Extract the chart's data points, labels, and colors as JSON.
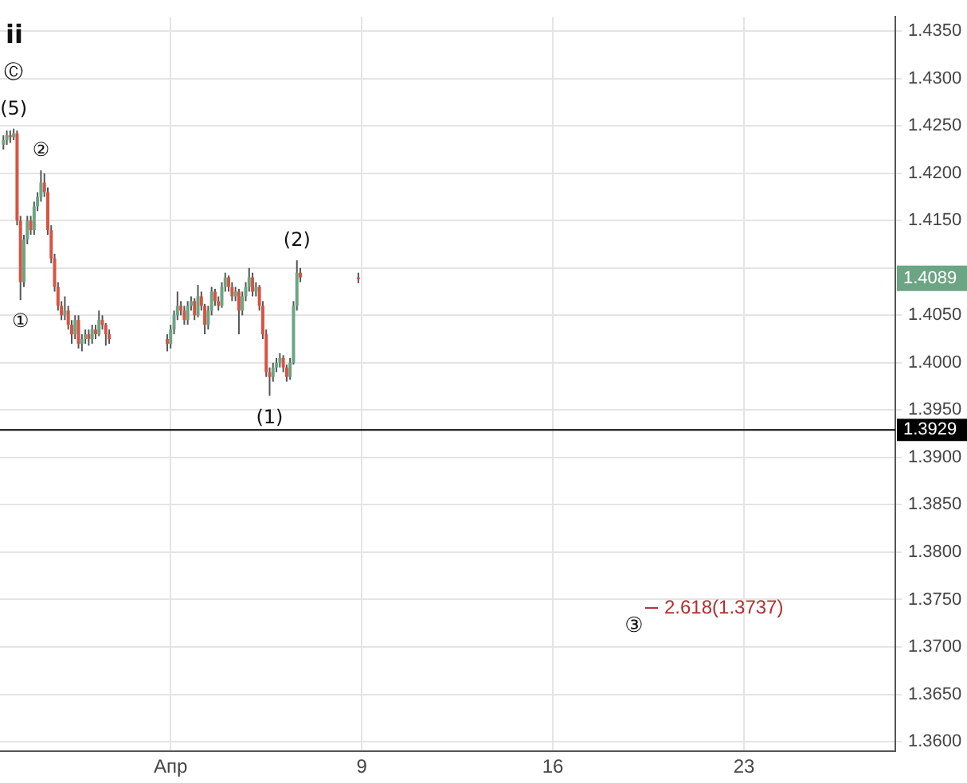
{
  "chart_data": {
    "type": "candlestick",
    "x": [
      "--03-26T21:00",
      "--03-27T00:00",
      "--03-27T03:00",
      "--03-27T06:00",
      "--03-27T09:00",
      "--03-27T12:00",
      "--03-27T15:00",
      "--03-27T18:00",
      "--03-27T21:00",
      "--03-28T00:00",
      "--03-28T03:00",
      "--03-28T06:00",
      "--03-28T09:00",
      "--03-28T12:00",
      "--03-28T15:00",
      "--03-28T18:00",
      "--03-28T21:00",
      "--03-29T00:00",
      "--03-29T03:00",
      "--03-29T06:00",
      "--03-29T09:00",
      "--03-29T12:00",
      "--03-29T15:00",
      "--03-29T18:00",
      "--03-29T21:00",
      "--03-30T00:00",
      "--03-30T03:00",
      "--03-30T06:00",
      "--03-30T09:00",
      "--03-30T12:00",
      "--03-30T15:00",
      "--03-30T18:00",
      "--04-01T21:00",
      "--04-02T00:00",
      "--04-02T03:00",
      "--04-02T06:00",
      "--04-02T09:00",
      "--04-02T12:00",
      "--04-02T15:00",
      "--04-02T18:00",
      "--04-02T21:00",
      "--04-03T00:00",
      "--04-03T03:00",
      "--04-03T06:00",
      "--04-03T09:00",
      "--04-03T12:00",
      "--04-03T15:00",
      "--04-03T18:00",
      "--04-03T21:00",
      "--04-04T00:00",
      "--04-04T03:00",
      "--04-04T06:00",
      "--04-04T09:00",
      "--04-04T12:00",
      "--04-04T15:00",
      "--04-04T18:00",
      "--04-04T21:00",
      "--04-05T00:00",
      "--04-05T03:00",
      "--04-05T06:00",
      "--04-05T09:00",
      "--04-05T12:00",
      "--04-05T15:00",
      "--04-05T18:00",
      "--04-05T21:00",
      "--04-06T00:00",
      "--04-06T03:00",
      "--04-06T06:00",
      "--04-06T09:00",
      "--04-06T12:00",
      "--04-06T15:00",
      "--04-06T18:00",
      "--04-08T21:00"
    ],
    "ohlc": [
      [
        1.423,
        1.424,
        1.4225,
        1.4235
      ],
      [
        1.4235,
        1.4245,
        1.423,
        1.424
      ],
      [
        1.424,
        1.4245,
        1.4232,
        1.4238
      ],
      [
        1.4238,
        1.4247,
        1.4235,
        1.4242
      ],
      [
        1.4242,
        1.4245,
        1.4145,
        1.415
      ],
      [
        1.415,
        1.4155,
        1.4066,
        1.4085
      ],
      [
        1.4085,
        1.4135,
        1.408,
        1.413
      ],
      [
        1.413,
        1.4155,
        1.4125,
        1.415
      ],
      [
        1.415,
        1.4155,
        1.4135,
        1.414
      ],
      [
        1.414,
        1.417,
        1.4135,
        1.4165
      ],
      [
        1.4165,
        1.418,
        1.416,
        1.4175
      ],
      [
        1.4175,
        1.4203,
        1.417,
        1.419
      ],
      [
        1.419,
        1.42,
        1.4175,
        1.418
      ],
      [
        1.418,
        1.4185,
        1.4135,
        1.414
      ],
      [
        1.414,
        1.4145,
        1.4105,
        1.411
      ],
      [
        1.411,
        1.4115,
        1.4075,
        1.408
      ],
      [
        1.408,
        1.4085,
        1.4055,
        1.406
      ],
      [
        1.406,
        1.4065,
        1.4045,
        1.405
      ],
      [
        1.405,
        1.407,
        1.4045,
        1.4055
      ],
      [
        1.4055,
        1.406,
        1.4035,
        1.404
      ],
      [
        1.404,
        1.4045,
        1.402,
        1.403
      ],
      [
        1.403,
        1.405,
        1.4025,
        1.4045
      ],
      [
        1.4045,
        1.405,
        1.4015,
        1.402
      ],
      [
        1.402,
        1.403,
        1.4012,
        1.4025
      ],
      [
        1.4025,
        1.4035,
        1.402,
        1.403
      ],
      [
        1.403,
        1.4035,
        1.4018,
        1.4025
      ],
      [
        1.4025,
        1.404,
        1.402,
        1.4035
      ],
      [
        1.4035,
        1.404,
        1.4025,
        1.403
      ],
      [
        1.403,
        1.4055,
        1.4028,
        1.4045
      ],
      [
        1.4045,
        1.405,
        1.4035,
        1.404
      ],
      [
        1.404,
        1.4042,
        1.4018,
        1.403
      ],
      [
        1.403,
        1.4035,
        1.402,
        1.4025
      ],
      [
        1.4025,
        1.403,
        1.4012,
        1.402
      ],
      [
        1.402,
        1.404,
        1.4015,
        1.4035
      ],
      [
        1.4035,
        1.4055,
        1.403,
        1.405
      ],
      [
        1.405,
        1.4075,
        1.4045,
        1.406
      ],
      [
        1.406,
        1.4065,
        1.405,
        1.4055
      ],
      [
        1.4055,
        1.406,
        1.404,
        1.4045
      ],
      [
        1.4045,
        1.4065,
        1.404,
        1.406
      ],
      [
        1.406,
        1.407,
        1.4055,
        1.4065
      ],
      [
        1.4065,
        1.4068,
        1.4045,
        1.405
      ],
      [
        1.405,
        1.4082,
        1.4048,
        1.407
      ],
      [
        1.407,
        1.4075,
        1.4055,
        1.406
      ],
      [
        1.406,
        1.4062,
        1.403,
        1.404
      ],
      [
        1.404,
        1.406,
        1.4035,
        1.4055
      ],
      [
        1.4055,
        1.408,
        1.405,
        1.4075
      ],
      [
        1.4075,
        1.4078,
        1.406,
        1.4065
      ],
      [
        1.4065,
        1.407,
        1.4055,
        1.406
      ],
      [
        1.406,
        1.4085,
        1.4058,
        1.408
      ],
      [
        1.408,
        1.4095,
        1.4075,
        1.409
      ],
      [
        1.409,
        1.4092,
        1.4075,
        1.408
      ],
      [
        1.408,
        1.4085,
        1.4065,
        1.407
      ],
      [
        1.407,
        1.408,
        1.4065,
        1.4075
      ],
      [
        1.4075,
        1.4078,
        1.403,
        1.4055
      ],
      [
        1.4055,
        1.4075,
        1.405,
        1.407
      ],
      [
        1.407,
        1.4085,
        1.4065,
        1.408
      ],
      [
        1.408,
        1.41,
        1.4075,
        1.409
      ],
      [
        1.409,
        1.4095,
        1.407,
        1.4075
      ],
      [
        1.4075,
        1.4085,
        1.407,
        1.408
      ],
      [
        1.408,
        1.4082,
        1.4055,
        1.406
      ],
      [
        1.406,
        1.4065,
        1.4025,
        1.403
      ],
      [
        1.403,
        1.4035,
        1.3985,
        1.399
      ],
      [
        1.399,
        1.3995,
        1.3965,
        1.3985
      ],
      [
        1.3985,
        1.4,
        1.398,
        1.3995
      ],
      [
        1.3995,
        1.4005,
        1.399,
        1.4
      ],
      [
        1.4,
        1.401,
        1.3995,
        1.4005
      ],
      [
        1.4005,
        1.4008,
        1.399,
        1.3995
      ],
      [
        1.3995,
        1.3998,
        1.398,
        1.3985
      ],
      [
        1.3985,
        1.4005,
        1.3982,
        1.4
      ],
      [
        1.4,
        1.4065,
        1.3998,
        1.406
      ],
      [
        1.406,
        1.4108,
        1.4055,
        1.4095
      ],
      [
        1.4095,
        1.41,
        1.4085,
        1.409
      ],
      [
        1.409,
        1.4095,
        1.4084,
        1.4089
      ]
    ],
    "xlim": [
      "--03-26T18:00",
      "--04-28T13:00"
    ],
    "xticks": [
      {
        "value": "--04-02",
        "label": "Апр"
      },
      {
        "value": "--04-09",
        "label": "9"
      },
      {
        "value": "--04-16",
        "label": "16"
      },
      {
        "value": "--04-23",
        "label": "23"
      }
    ],
    "ylim": [
      1.359,
      1.4365
    ],
    "yticks": [
      {
        "value": 1.36,
        "label": "1.3600"
      },
      {
        "value": 1.365,
        "label": "1.3650"
      },
      {
        "value": 1.37,
        "label": "1.3700"
      },
      {
        "value": 1.375,
        "label": "1.3750"
      },
      {
        "value": 1.38,
        "label": "1.3800"
      },
      {
        "value": 1.385,
        "label": "1.3850"
      },
      {
        "value": 1.39,
        "label": "1.3900"
      },
      {
        "value": 1.395,
        "label": "1.3950"
      },
      {
        "value": 1.4,
        "label": "1.4000"
      },
      {
        "value": 1.405,
        "label": "1.4050"
      },
      {
        "value": 1.41,
        "label": null
      },
      {
        "value": 1.415,
        "label": "1.4150"
      },
      {
        "value": 1.42,
        "label": "1.4200"
      },
      {
        "value": 1.425,
        "label": "1.4250"
      },
      {
        "value": 1.43,
        "label": "1.4300"
      },
      {
        "value": 1.435,
        "label": "1.4350"
      }
    ],
    "grid": true,
    "ref_lines": [
      {
        "axis": "y",
        "value": 1.3929,
        "label": "1.3929",
        "color": "#000000"
      }
    ],
    "annotations": [
      {
        "text": "(5)",
        "x": "--03-27T06:00",
        "y": 1.4247
      },
      {
        "text": "Ⓒ",
        "x": "--03-27T06:00",
        "y": 1.4247
      },
      "ii",
      {
        "text": "①",
        "x": "--03-27T12:00",
        "y": 1.4066
      },
      {
        "text": "②",
        "x": "--03-28T06:00",
        "y": 1.4203
      },
      {
        "text": "(1)",
        "x": "--04-05T15:00",
        "y": 1.3965
      },
      {
        "text": "(2)",
        "x": "--04-06T15:00",
        "y": 1.4108
      },
      "③",
      "2.618(1.3737)",
      "1.4089"
    ]
  }
}
